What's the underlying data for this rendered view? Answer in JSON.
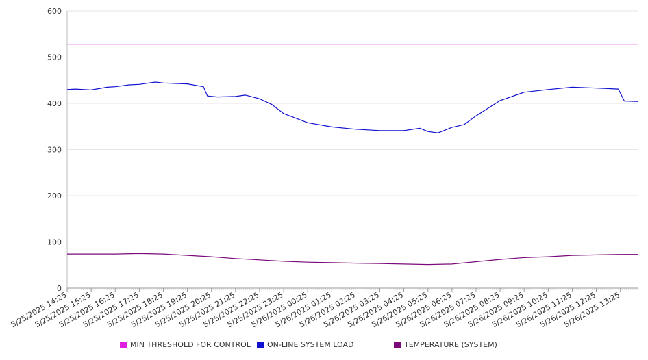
{
  "chart_data": {
    "type": "line",
    "title": "",
    "xlabel": "",
    "ylabel": "",
    "ylim": [
      0,
      600
    ],
    "y_ticks": [
      "0",
      "100",
      "200",
      "300",
      "400",
      "500",
      "600"
    ],
    "x_tick_labels": [
      "5/25/2025 14:25",
      "5/25/2025 15:25",
      "5/25/2025 16:25",
      "5/25/2025 17:25",
      "5/25/2025 18:25",
      "5/25/2025 19:25",
      "5/25/2025 20:25",
      "5/25/2025 21:25",
      "5/25/2025 22:25",
      "5/25/2025 23:25",
      "5/26/2025 00:25",
      "5/26/2025 01:25",
      "5/26/2025 02:25",
      "5/26/2025 03:25",
      "5/26/2025 04:25",
      "5/26/2025 05:25",
      "5/26/2025 06:25",
      "5/26/2025 07:25",
      "5/26/2025 08:25",
      "5/26/2025 09:25",
      "5/26/2025 10:25",
      "5/26/2025 11:25",
      "5/26/2025 12:25",
      "5/26/2025 13:25"
    ],
    "x_start": "5/25/2025 14:25",
    "x_end": "5/26/2025 14:10",
    "grid": "horizontal",
    "legend_position": "bottom",
    "series": [
      {
        "name": "MIN THRESHOLD FOR CONTROL",
        "color": "#e020e0",
        "x": [
          "5/25/2025 14:25",
          "5/26/2025 14:10"
        ],
        "values": [
          528,
          528
        ]
      },
      {
        "name": "ON-LINE SYSTEM LOAD",
        "color": "#1010d0",
        "x": [
          "5/25/2025 14:25",
          "5/25/2025 14:45",
          "5/25/2025 15:25",
          "5/25/2025 16:05",
          "5/25/2025 16:25",
          "5/25/2025 17:00",
          "5/25/2025 17:25",
          "5/25/2025 18:05",
          "5/25/2025 18:25",
          "5/25/2025 19:25",
          "5/25/2025 20:05",
          "5/25/2025 20:15",
          "5/25/2025 20:40",
          "5/25/2025 21:25",
          "5/25/2025 21:50",
          "5/25/2025 22:25",
          "5/25/2025 22:55",
          "5/25/2025 23:25",
          "5/26/2025 00:25",
          "5/26/2025 01:25",
          "5/26/2025 02:25",
          "5/26/2025 03:25",
          "5/26/2025 04:25",
          "5/26/2025 05:05",
          "5/26/2025 05:25",
          "5/26/2025 05:50",
          "5/26/2025 06:25",
          "5/26/2025 06:55",
          "5/26/2025 07:25",
          "5/26/2025 08:25",
          "5/26/2025 09:25",
          "5/26/2025 10:25",
          "5/26/2025 11:25",
          "5/26/2025 12:25",
          "5/26/2025 13:20",
          "5/26/2025 13:35",
          "5/26/2025 14:10"
        ],
        "values": [
          430,
          431,
          429,
          435,
          436,
          440,
          441,
          446,
          444,
          442,
          436,
          416,
          414,
          415,
          418,
          410,
          398,
          378,
          358,
          349,
          344,
          341,
          341,
          346,
          339,
          336,
          348,
          354,
          373,
          406,
          424,
          430,
          435,
          433,
          431,
          405,
          404
        ]
      },
      {
        "name": "TEMPERATURE (SYSTEM)",
        "color": "#7a0a7a",
        "x": [
          "5/25/2025 14:25",
          "5/25/2025 15:25",
          "5/25/2025 16:25",
          "5/25/2025 17:25",
          "5/25/2025 18:25",
          "5/25/2025 19:25",
          "5/25/2025 20:25",
          "5/25/2025 21:25",
          "5/25/2025 22:25",
          "5/25/2025 23:25",
          "5/26/2025 00:25",
          "5/26/2025 01:25",
          "5/26/2025 02:25",
          "5/26/2025 03:25",
          "5/26/2025 04:25",
          "5/26/2025 05:25",
          "5/26/2025 06:25",
          "5/26/2025 07:25",
          "5/26/2025 08:25",
          "5/26/2025 09:25",
          "5/26/2025 10:25",
          "5/26/2025 11:25",
          "5/26/2025 12:25",
          "5/26/2025 13:25",
          "5/26/2025 14:10"
        ],
        "values": [
          74,
          74,
          74,
          75,
          74,
          71,
          68,
          64,
          61,
          58,
          56,
          55,
          54,
          53,
          52,
          51,
          52,
          57,
          62,
          66,
          68,
          71,
          72,
          73,
          73
        ]
      }
    ]
  }
}
